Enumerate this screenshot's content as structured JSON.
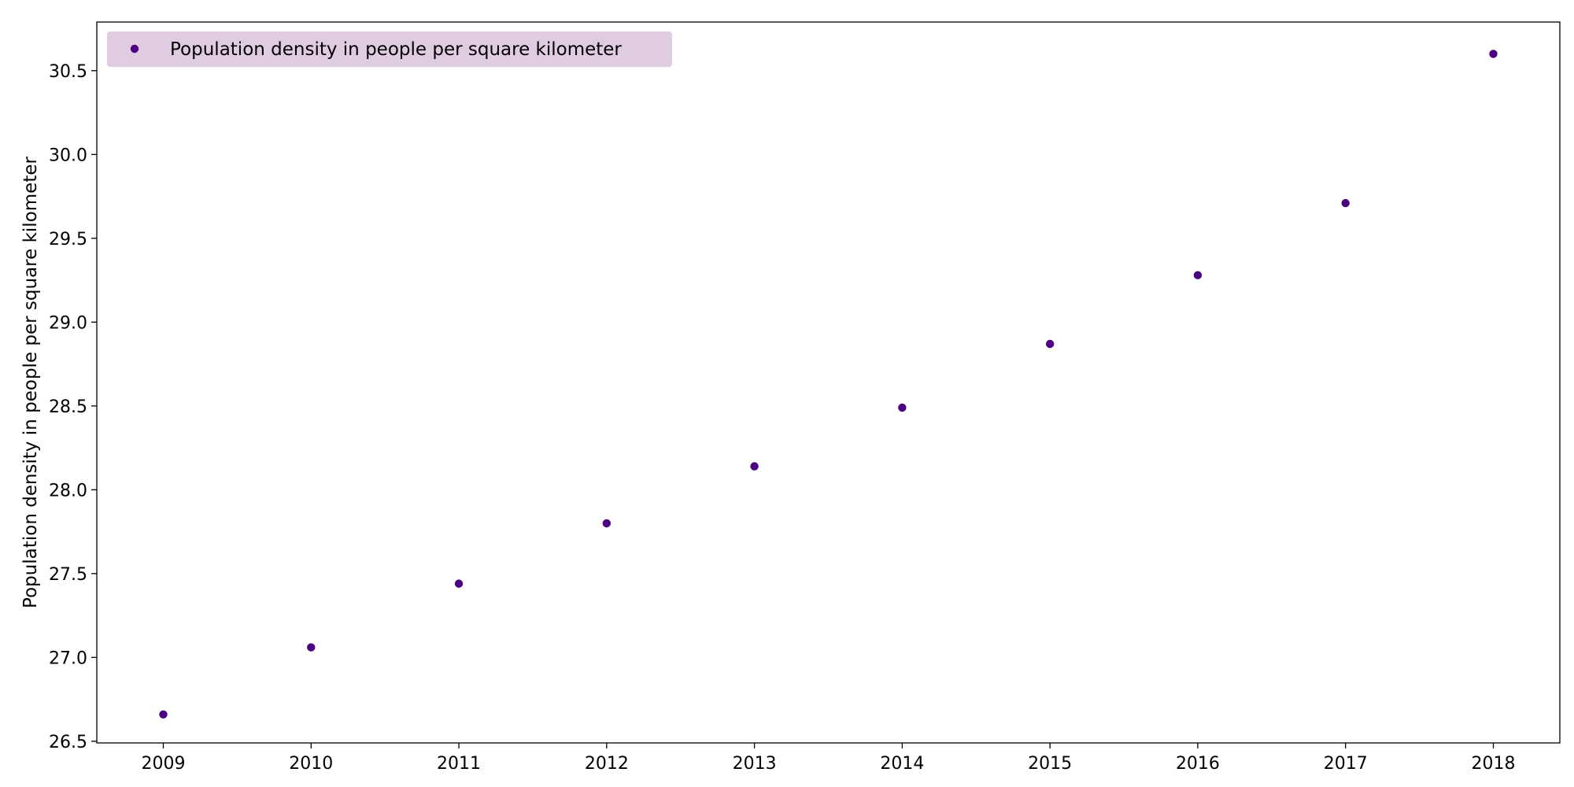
{
  "chart_data": {
    "type": "scatter",
    "title": "",
    "xlabel": "",
    "ylabel": "Population density in people per square kilometer",
    "x": [
      2009,
      2010,
      2011,
      2012,
      2013,
      2014,
      2015,
      2016,
      2017,
      2018
    ],
    "series": [
      {
        "name": "Population density in people per square kilometer",
        "color": "#4b0082",
        "values": [
          26.66,
          27.06,
          27.44,
          27.8,
          28.14,
          28.49,
          28.87,
          29.28,
          29.71,
          30.6
        ]
      }
    ],
    "x_ticks": [
      "2009",
      "2010",
      "2011",
      "2012",
      "2013",
      "2014",
      "2015",
      "2016",
      "2017",
      "2018"
    ],
    "y_ticks": [
      "26.5",
      "27.0",
      "27.5",
      "28.0",
      "28.5",
      "29.0",
      "29.5",
      "30.0",
      "30.5"
    ],
    "xlim": [
      2008.55,
      2018.45
    ],
    "ylim": [
      26.49,
      30.79
    ],
    "grid": false,
    "legend": {
      "placement": "top-left",
      "background": "#dfcce1"
    }
  }
}
